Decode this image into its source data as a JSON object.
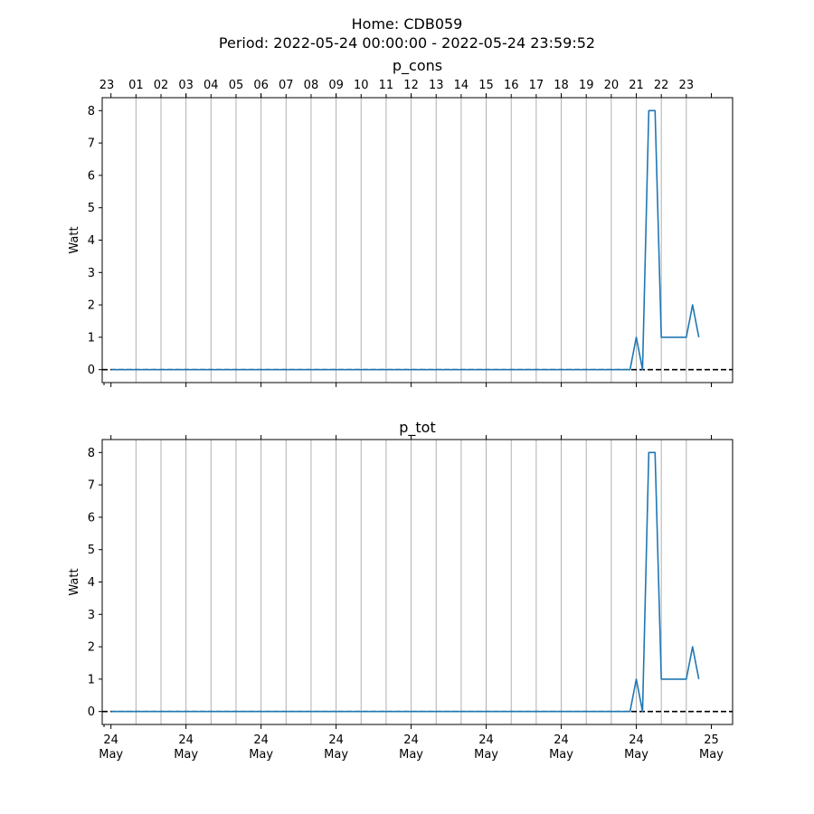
{
  "figure": {
    "title_line1": "Home: CDB059",
    "title_line2": "Period: 2022-05-24 00:00:00 - 2022-05-24 23:59:52"
  },
  "colors": {
    "series": "#1f77b4",
    "grid": "#b0b0b0",
    "zero_line": "#000000"
  },
  "chart_data": [
    {
      "type": "line",
      "title": "p_cons",
      "ylabel": "Watt",
      "ylim": [
        -0.4,
        8.4
      ],
      "yticks": [
        0,
        1,
        2,
        3,
        4,
        5,
        6,
        7,
        8
      ],
      "xlim_hours": [
        -0.35,
        24.85
      ],
      "grid": "vertical at each hour",
      "zero_line": "dashed black at 0",
      "top_axis_labels": [
        "23",
        "01",
        "02",
        "03",
        "04",
        "05",
        "06",
        "07",
        "08",
        "09",
        "10",
        "11",
        "12",
        "13",
        "14",
        "15",
        "16",
        "17",
        "18",
        "19",
        "20",
        "21",
        "22",
        "23"
      ],
      "bottom_tick_labels": [],
      "series": [
        {
          "x_hours": [
            0.0,
            20.75,
            21.0,
            21.25,
            21.5,
            21.75,
            22.0,
            22.75,
            23.0,
            23.25,
            23.5
          ],
          "values": [
            0,
            0,
            1,
            0,
            8,
            8,
            1,
            1,
            1,
            2,
            1
          ]
        }
      ]
    },
    {
      "type": "line",
      "title": "p_tot",
      "ylabel": "Watt",
      "ylim": [
        -0.4,
        8.4
      ],
      "yticks": [
        0,
        1,
        2,
        3,
        4,
        5,
        6,
        7,
        8
      ],
      "xlim_hours": [
        -0.35,
        24.85
      ],
      "grid": "vertical at each hour",
      "zero_line": "dashed black at 0",
      "top_axis_labels": [],
      "bottom_tick_labels": [
        {
          "day": "24",
          "month": "May"
        },
        {
          "day": "24",
          "month": "May"
        },
        {
          "day": "24",
          "month": "May"
        },
        {
          "day": "24",
          "month": "May"
        },
        {
          "day": "24",
          "month": "May"
        },
        {
          "day": "24",
          "month": "May"
        },
        {
          "day": "24",
          "month": "May"
        },
        {
          "day": "24",
          "month": "May"
        },
        {
          "day": "25",
          "month": "May"
        }
      ],
      "series": [
        {
          "x_hours": [
            0.0,
            20.75,
            21.0,
            21.25,
            21.5,
            21.75,
            22.0,
            22.75,
            23.0,
            23.25,
            23.5
          ],
          "values": [
            0,
            0,
            1,
            0,
            8,
            8,
            1,
            1,
            1,
            2,
            1
          ]
        }
      ]
    }
  ]
}
